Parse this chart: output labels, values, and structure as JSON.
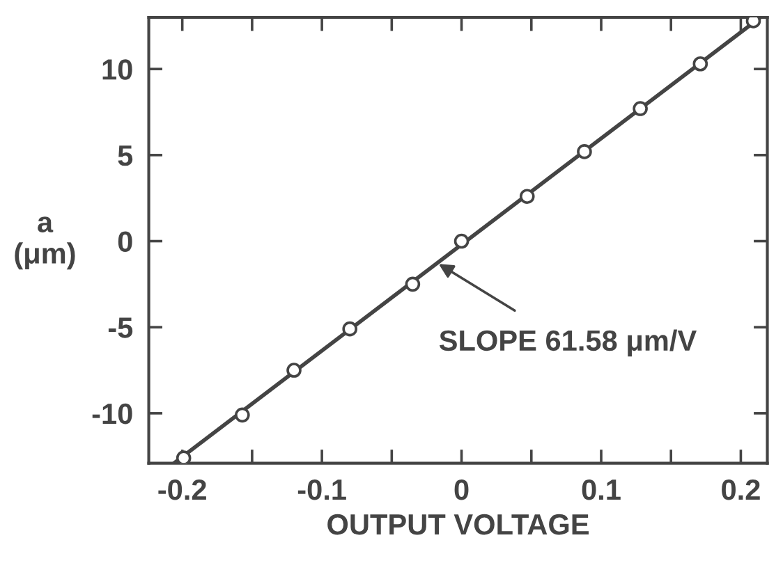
{
  "chart_data": {
    "type": "scatter",
    "xlabel": "OUTPUT VOLTAGE",
    "ylabel": "a\n(μm)",
    "series": [
      {
        "color": "#444444",
        "marker": "circle",
        "x": [
          -0.199,
          -0.157,
          -0.12,
          -0.08,
          -0.035,
          0.0,
          0.047,
          0.088,
          0.128,
          0.171,
          0.209
        ],
        "values": [
          -12.6,
          -10.1,
          -7.5,
          -5.1,
          -2.5,
          0.0,
          2.6,
          5.2,
          7.7,
          10.3,
          12.8
        ]
      },
      {
        "type": "line",
        "color": "#444444",
        "line_style": "solid",
        "x": [
          -0.206,
          0.214
        ],
        "values": [
          -12.9,
          13.0
        ]
      }
    ],
    "xlim": [
      -0.224,
      0.219
    ],
    "ylim": [
      -12.9,
      13.0
    ],
    "xticks": [
      -0.2,
      {
        "value": -0.15,
        "label": null
      },
      -0.1,
      {
        "value": -0.05,
        "label": null
      },
      0,
      {
        "value": 0.05,
        "label": null
      },
      0.1,
      {
        "value": 0.15,
        "label": null
      },
      0.2
    ],
    "yticks": [
      -10,
      -5,
      0,
      5,
      10
    ],
    "annotations": [
      {
        "text": "SLOPE 61.58 μm/V",
        "x": -0.0164,
        "y": -1.32
      }
    ],
    "grid": false,
    "legend": false
  }
}
